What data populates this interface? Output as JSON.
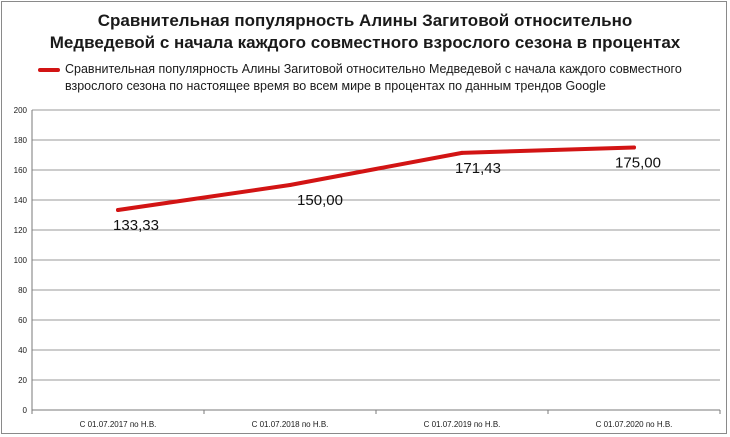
{
  "title_lines": [
    "Сравнительная популярность Алины Загитовой относительно",
    "Медведевой с начала каждого совместного взрослого сезона в процентах"
  ],
  "legend": {
    "color": "#d21414",
    "lines": [
      "Сравнительная популярность Алины Загитовой относительно Медведевой с начала каждого совместного",
      "взрослого сезона по настоящее время во всем мире в процентах по данным трендов Google"
    ]
  },
  "chart_data": {
    "type": "line",
    "categories": [
      "С 01.07.2017 по Н.В.",
      "С 01.07.2018 по Н.В.",
      "С 01.07.2019 по Н.В.",
      "С 01.07.2020 по Н.В."
    ],
    "series": [
      {
        "values": [
          133.33,
          150.0,
          171.43,
          175.0
        ],
        "labels": [
          "133,33",
          "150,00",
          "171,43",
          "175,00"
        ],
        "color": "#d21414"
      }
    ],
    "ylim": [
      0,
      200
    ],
    "yticks": [
      "0",
      "20",
      "40",
      "60",
      "80",
      "100",
      "120",
      "140",
      "160",
      "180",
      "200"
    ],
    "grid": true,
    "legend_position": "top"
  }
}
